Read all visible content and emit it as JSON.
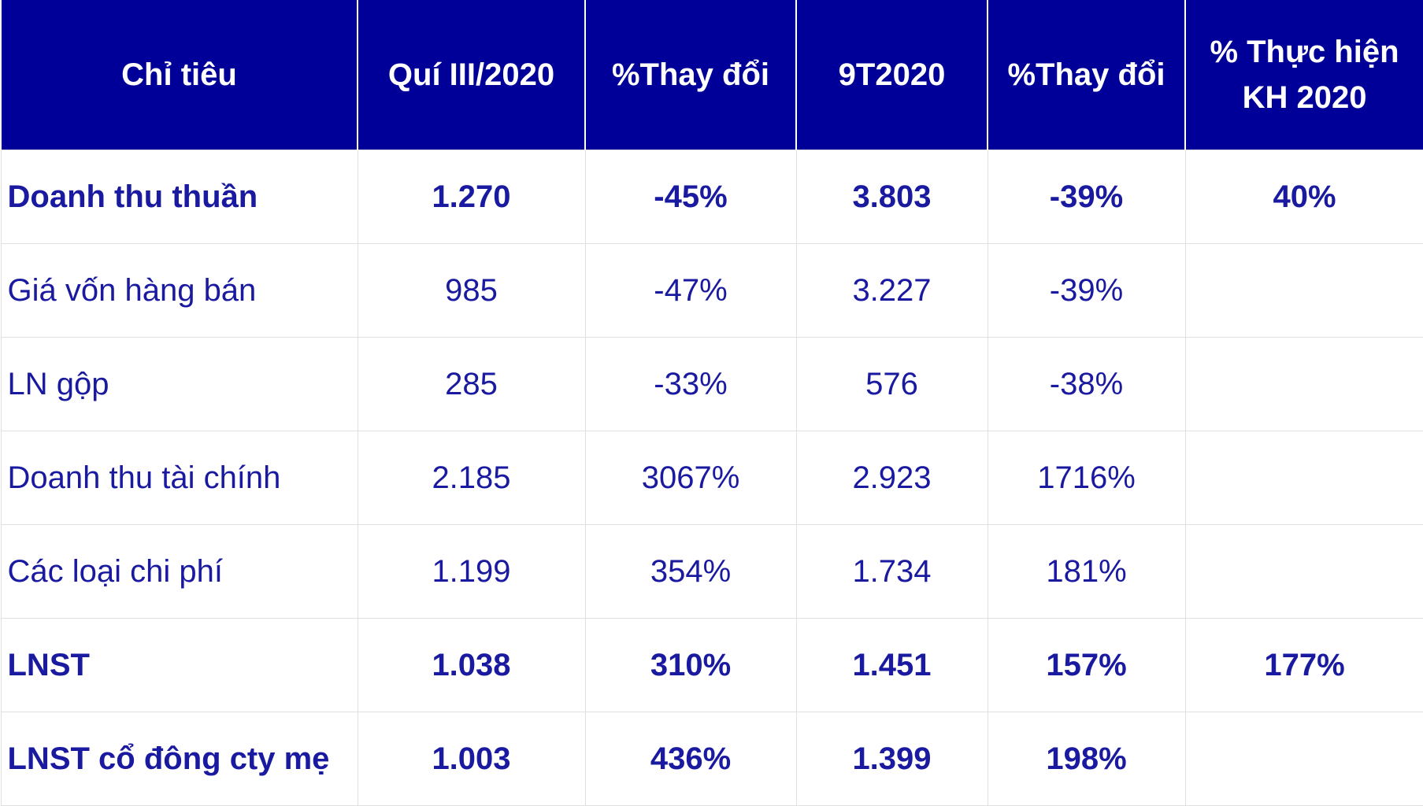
{
  "table": {
    "header": [
      "Chỉ tiêu",
      "Quí III/2020",
      "%Thay đổi",
      "9T2020",
      "%Thay đổi",
      [
        "% Thực hiện",
        "KH 2020"
      ]
    ],
    "rows": [
      {
        "bold": true,
        "cells": [
          "Doanh thu thuần",
          "1.270",
          "-45%",
          "3.803",
          "-39%",
          "40%"
        ]
      },
      {
        "bold": false,
        "cells": [
          "Giá vốn hàng bán",
          "985",
          "-47%",
          "3.227",
          "-39%",
          null
        ]
      },
      {
        "bold": false,
        "cells": [
          "LN gộp",
          "285",
          "-33%",
          "576",
          "-38%",
          null
        ]
      },
      {
        "bold": false,
        "cells": [
          "Doanh thu tài chính",
          "2.185",
          "3067%",
          "2.923",
          "1716%",
          null
        ]
      },
      {
        "bold": false,
        "cells": [
          "Các loại chi phí",
          "1.199",
          "354%",
          "1.734",
          "181%",
          null
        ]
      },
      {
        "bold": true,
        "cells": [
          "LNST",
          "1.038",
          "310%",
          "1.451",
          "157%",
          "177%"
        ]
      },
      {
        "bold": true,
        "cells": [
          "LNST cổ đông cty mẹ",
          "1.003",
          "436%",
          "1.399",
          "198%",
          null
        ]
      }
    ]
  }
}
